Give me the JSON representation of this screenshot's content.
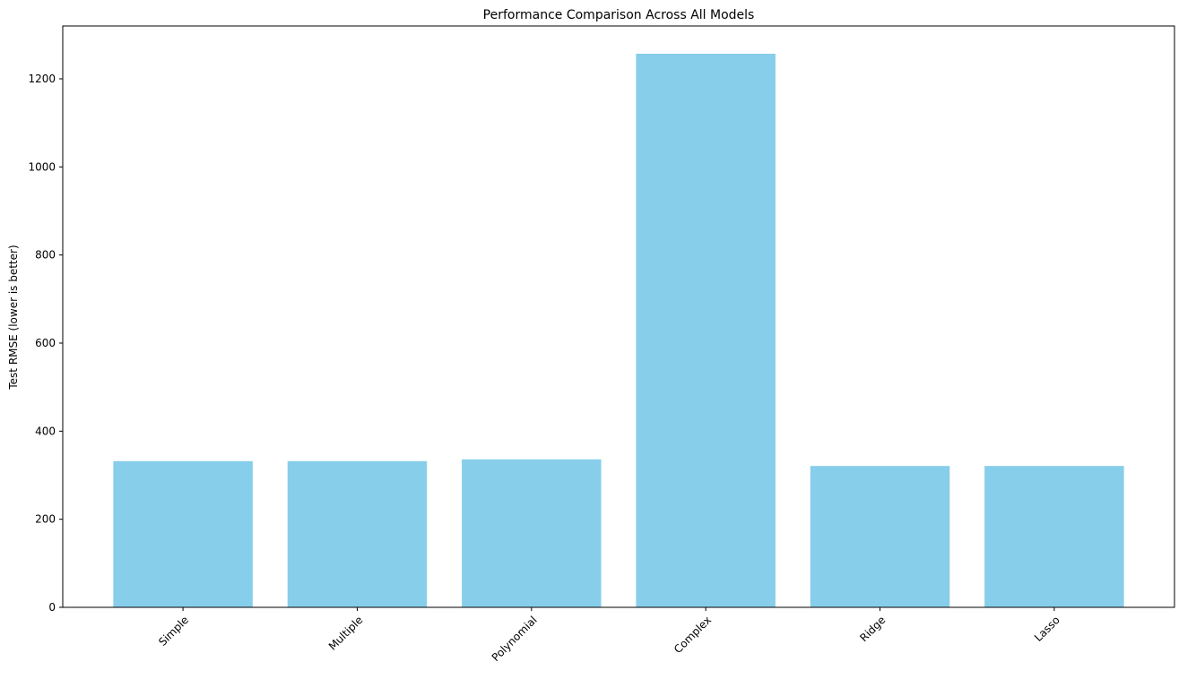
{
  "chart_data": {
    "type": "bar",
    "title": "Performance Comparison Across All Models",
    "y_label": "Test RMSE (lower is better)",
    "categories": [
      "Simple",
      "Multiple",
      "Polynomial",
      "Complex",
      "Ridge",
      "Lasso"
    ],
    "values": [
      332,
      332,
      336,
      1257,
      321,
      321
    ],
    "color": "#87ceeb",
    "ylim": [
      0,
      1320
    ],
    "yticks": [
      0,
      200,
      400,
      600,
      800,
      1000,
      1200
    ],
    "grid": false
  }
}
